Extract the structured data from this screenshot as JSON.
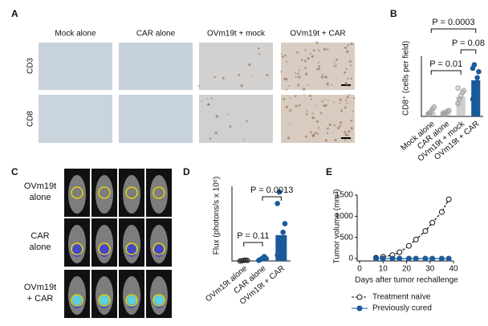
{
  "panels": {
    "labels": [
      "A",
      "B",
      "C",
      "D",
      "E"
    ]
  },
  "panel_a": {
    "columns": [
      "Mock alone",
      "CAR alone",
      "OVm19t + mock",
      "OVm19t + CAR"
    ],
    "rows": [
      "CD3",
      "CD8"
    ]
  },
  "panel_c": {
    "rows": [
      [
        "OVm19t",
        "alone"
      ],
      [
        "CAR",
        "alone"
      ],
      [
        "OVm19t",
        "+ CAR"
      ]
    ]
  },
  "chart_data": [
    {
      "type": "bar",
      "ylabel": "CD8⁺ (cells per field)",
      "categories": [
        "Mock alone",
        "CAR alone",
        "OVm19t + mock",
        "OVm19t + CAR"
      ],
      "values": [
        50,
        45,
        230,
        420
      ],
      "colors": [
        "#a0a0a0",
        "#a0a0a0",
        "#a0a0a0",
        "#1a5a9a"
      ],
      "points": [
        [
          20,
          40,
          60,
          90,
          110,
          30
        ],
        [
          20,
          30,
          50,
          60,
          70,
          40
        ],
        [
          150,
          200,
          240,
          280,
          300,
          330
        ],
        [
          200,
          300,
          380,
          450,
          520,
          560,
          600
        ]
      ],
      "ylim": [
        0,
        700
      ],
      "annotations": [
        "P = 0.0003",
        "P = 0.01",
        "P = 0.08"
      ]
    },
    {
      "type": "bar",
      "ylabel": "Flux (photons/s x 10⁶)",
      "categories": [
        "OVm19t alone",
        "CAR alone",
        "OVm19t + CAR"
      ],
      "values": [
        0.02,
        0.08,
        0.9
      ],
      "colors": [
        "#222222",
        "#1a5a9a",
        "#1a5a9a"
      ],
      "points": [
        [
          0,
          0.01,
          0.02,
          0.03,
          0.02
        ],
        [
          0.02,
          0.05,
          0.1,
          0.15,
          0.08
        ],
        [
          0.2,
          0.5,
          0.8,
          1.0,
          1.3,
          2.0,
          2.4
        ]
      ],
      "ylim": [
        0,
        2.6
      ],
      "annotations": [
        "P = 0.11",
        "P = 0.0013"
      ]
    },
    {
      "type": "line",
      "xlabel": "Days after tumor rechallenge",
      "ylabel": "Tumor volume (mm³)",
      "x": [
        7,
        10,
        14,
        17,
        21,
        24,
        28,
        31,
        35,
        38
      ],
      "series": [
        {
          "name": "Treatment naïve",
          "color": "#111111",
          "marker": "open",
          "values": [
            20,
            40,
            80,
            150,
            300,
            450,
            650,
            850,
            1100,
            1400
          ]
        },
        {
          "name": "Previously cured",
          "color": "#1a5a9a",
          "marker": "filled",
          "values": [
            0,
            0,
            0,
            0,
            0,
            0,
            0,
            0,
            0,
            0
          ]
        }
      ],
      "xlim": [
        0,
        40
      ],
      "xticks": [
        0,
        10,
        20,
        30,
        40
      ],
      "ylim": [
        0,
        1500
      ],
      "yticks": [
        0,
        500,
        1000,
        1500
      ]
    }
  ]
}
